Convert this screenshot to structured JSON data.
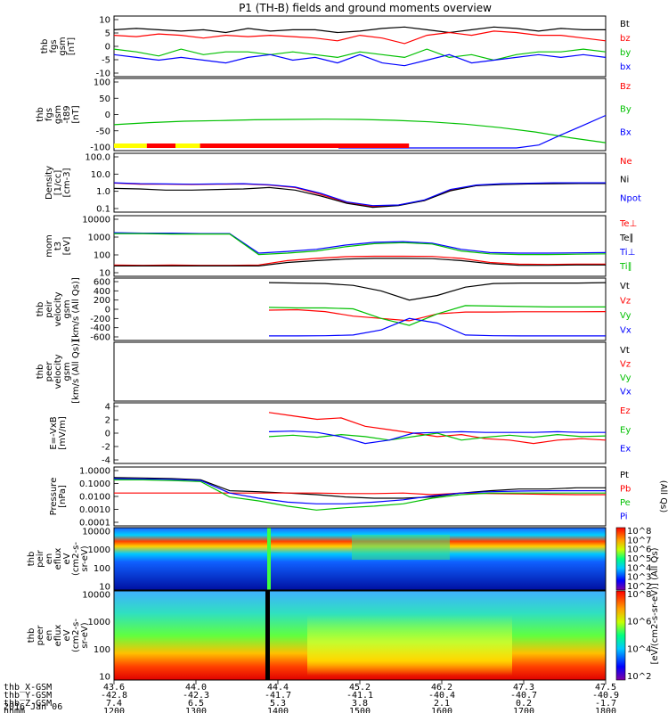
{
  "title": "P1 (TH-B) fields and ground moments overview",
  "chart_data": [
    {
      "type": "line",
      "panel": "fgs",
      "ylabel": [
        "thb",
        "fgs",
        "gsm",
        "[nT]"
      ],
      "yticks": [
        "10",
        "5",
        "0",
        "-5",
        "-10"
      ],
      "ylim": [
        -10,
        10
      ],
      "series": [
        {
          "name": "Bt",
          "color": "#000000",
          "values": [
            6,
            6.5,
            6,
            5.5,
            6,
            5,
            6.5,
            5.5,
            6,
            6,
            5,
            5.5,
            6.5,
            7,
            6,
            5,
            6,
            7,
            6.5,
            5.5,
            6.5,
            6,
            6
          ]
        },
        {
          "name": "bz",
          "color": "#ff0000",
          "values": [
            4,
            3.5,
            4.5,
            4,
            3,
            4,
            3.5,
            4,
            3.5,
            3,
            2,
            4,
            3,
            1,
            4,
            5,
            4,
            5.5,
            5,
            4,
            4,
            3,
            2
          ]
        },
        {
          "name": "by",
          "color": "#00c000",
          "values": [
            -1,
            -2,
            -3.5,
            -1,
            -3,
            -2,
            -2,
            -3,
            -2,
            -3,
            -4,
            -2,
            -3,
            -4,
            -1,
            -4,
            -3,
            -5,
            -3,
            -2,
            -2,
            -1,
            -2
          ]
        },
        {
          "name": "bx",
          "color": "#0000ff",
          "values": [
            -3,
            -4,
            -5,
            -4,
            -5,
            -6,
            -4,
            -3,
            -5,
            -4,
            -6,
            -3,
            -6,
            -7,
            -5,
            -3,
            -6,
            -5,
            -4,
            -3,
            -4,
            -3,
            -4
          ]
        }
      ]
    },
    {
      "type": "line",
      "panel": "fgs-model",
      "ylabel": [
        "thb",
        "fgs",
        "gsm",
        "-t89",
        "[nT]"
      ],
      "yticks": [
        "100",
        "50",
        "0",
        "-50",
        "-100"
      ],
      "ylim": [
        -130,
        100
      ],
      "series": [
        {
          "name": "Bz",
          "color": "#ff0000",
          "values": []
        },
        {
          "name": "By",
          "color": "#00c000",
          "values": [
            -50,
            -43,
            -38,
            -36,
            -33,
            -32,
            -31,
            -32,
            -35,
            -40,
            -48,
            -60,
            -75,
            -95,
            -112
          ]
        },
        {
          "name": "Bx",
          "color": "#0000ff",
          "values": [
            -130,
            -130,
            -130,
            -130,
            -130,
            -130,
            -130,
            -130,
            -130,
            -120,
            -85,
            -52,
            -18
          ]
        }
      ],
      "bar_segments": [
        {
          "from": "1200",
          "to": "1240",
          "color": "#ffff00"
        },
        {
          "from": "1240",
          "to": "1315",
          "color": "#ff0000"
        },
        {
          "from": "1315",
          "to": "1345",
          "color": "#ffff00"
        },
        {
          "from": "1345",
          "to": "1800",
          "color": "#ff0000"
        }
      ]
    },
    {
      "type": "line",
      "panel": "density",
      "ylabel": [
        "Density",
        "[1/cc]",
        "[cm-3]"
      ],
      "yticks": [
        "100.0",
        "10.0",
        "1.0",
        "0.1"
      ],
      "scale": "log",
      "ylim": [
        0.05,
        200
      ],
      "series": [
        {
          "name": "Ne",
          "color": "#ff0000",
          "values": [
            3,
            2.5,
            2.5,
            2.4,
            2.5,
            2.6,
            2.2,
            1.5,
            0.5,
            0.15,
            0.08,
            0.1,
            0.2,
            1,
            2,
            2.6,
            2.8,
            3,
            3,
            3
          ]
        },
        {
          "name": "Ni",
          "color": "#000000",
          "values": [
            1.3,
            1.2,
            1,
            1,
            1.1,
            1.2,
            1.5,
            1,
            0.4,
            0.13,
            0.07,
            0.09,
            0.2,
            0.9,
            2,
            2.4,
            2.6,
            2.7,
            2.8,
            2.8
          ]
        },
        {
          "name": "Npot",
          "color": "#0000ff",
          "values": [
            3.1,
            2.7,
            2.6,
            2.5,
            2.6,
            2.7,
            2.3,
            1.6,
            0.6,
            0.16,
            0.09,
            0.1,
            0.22,
            1.1,
            2.2,
            2.7,
            2.9,
            3.1,
            3.1,
            3.1
          ]
        }
      ]
    },
    {
      "type": "line",
      "panel": "mom-temperature",
      "ylabel": [
        "mom",
        "t3",
        "[eV]"
      ],
      "yticks": [
        "10000",
        "1000",
        "100",
        "10"
      ],
      "scale": "log",
      "ylim": [
        8,
        12000
      ],
      "series": [
        {
          "name": "Te⊥",
          "color": "#ff0000",
          "values": [
            25,
            24,
            25,
            24,
            24,
            25,
            45,
            60,
            75,
            80,
            80,
            78,
            60,
            35,
            28,
            27,
            28,
            28
          ]
        },
        {
          "name": "Te∥",
          "color": "#000000",
          "values": [
            22,
            22,
            22,
            22,
            22,
            22,
            35,
            45,
            55,
            60,
            60,
            58,
            45,
            30,
            24,
            24,
            25,
            25
          ]
        },
        {
          "name": "Ti⊥",
          "color": "#0000ff",
          "values": [
            1800,
            1700,
            1700,
            1600,
            1600,
            120,
            150,
            200,
            350,
            500,
            550,
            450,
            200,
            130,
            120,
            120,
            125,
            130
          ]
        },
        {
          "name": "Ti∥",
          "color": "#00c000",
          "values": [
            1600,
            1600,
            1500,
            1500,
            1500,
            100,
            120,
            160,
            280,
            420,
            480,
            400,
            160,
            110,
            100,
            100,
            105,
            110
          ]
        }
      ]
    },
    {
      "type": "line",
      "panel": "peir-velocity",
      "ylabel": [
        "thb",
        "peir",
        "velocity",
        "gsm",
        "[km/s (All Qs)]"
      ],
      "yticks": [
        "600",
        "400",
        "200",
        "0",
        "-200",
        "-400",
        "-600"
      ],
      "ylim": [
        -620,
        620
      ],
      "series": [
        {
          "name": "Vt",
          "color": "#000000",
          "values": [
            580,
            570,
            560,
            520,
            400,
            200,
            300,
            480,
            560,
            570,
            570,
            570,
            580
          ]
        },
        {
          "name": "Vz",
          "color": "#ff0000",
          "values": [
            -20,
            -10,
            -50,
            -150,
            -200,
            -250,
            -100,
            -60,
            -60,
            -55,
            -55,
            -55,
            -50
          ]
        },
        {
          "name": "Vy",
          "color": "#00c000",
          "values": [
            40,
            30,
            30,
            10,
            -200,
            -350,
            -100,
            80,
            70,
            60,
            50,
            50,
            50
          ]
        },
        {
          "name": "Vx",
          "color": "#0000ff",
          "values": [
            -580,
            -580,
            -575,
            -560,
            -450,
            -200,
            -300,
            -560,
            -575,
            -580,
            -580,
            -580,
            -580
          ]
        }
      ]
    },
    {
      "type": "line",
      "panel": "peer-velocity",
      "ylabel": [
        "thb",
        "peer",
        "velocity",
        "gsm",
        "[km/s (All Qs)]"
      ],
      "yticks": [],
      "series": [
        {
          "name": "Vt",
          "color": "#000000",
          "values": []
        },
        {
          "name": "Vz",
          "color": "#ff0000",
          "values": []
        },
        {
          "name": "Vy",
          "color": "#00c000",
          "values": []
        },
        {
          "name": "Vx",
          "color": "#0000ff",
          "values": []
        }
      ]
    },
    {
      "type": "line",
      "panel": "efield",
      "ylabel": [
        "E=-VxB",
        "[mV/m]"
      ],
      "yticks": [
        "4",
        "2",
        "0",
        "-2",
        "-4"
      ],
      "ylim": [
        -4,
        4
      ],
      "series": [
        {
          "name": "Ez",
          "color": "#ff0000",
          "values": [
            3,
            2.5,
            2,
            2.2,
            1,
            0.5,
            0,
            -0.5,
            -0.2,
            -0.8,
            -1,
            -1.5,
            -1,
            -0.8,
            -1
          ]
        },
        {
          "name": "Ey",
          "color": "#00c000",
          "values": [
            -0.5,
            -0.3,
            -0.6,
            -0.2,
            -0.5,
            -1,
            -0.5,
            0,
            -1,
            -0.6,
            -0.3,
            -0.6,
            -0.2,
            -0.5,
            -0.4
          ]
        },
        {
          "name": "Ex",
          "color": "#0000ff",
          "values": [
            0.2,
            0.3,
            0.1,
            -0.5,
            -1.5,
            -1,
            0,
            0.1,
            0.2,
            0.1,
            0.1,
            0.1,
            0.2,
            0.1,
            0.1
          ]
        }
      ]
    },
    {
      "type": "line",
      "panel": "pressure",
      "ylabel": [
        "Pressure",
        "[nPa]"
      ],
      "yticks": [
        "1.0000",
        "0.1000",
        "0.0100",
        "0.0010",
        "0.0001"
      ],
      "scale": "log",
      "ylim": [
        0.0001,
        1.2
      ],
      "right_label": "(All Qs)",
      "series": [
        {
          "name": "Pt",
          "color": "#000000",
          "values": [
            0.3,
            0.28,
            0.25,
            0.2,
            0.03,
            0.025,
            0.02,
            0.015,
            0.01,
            0.008,
            0.008,
            0.01,
            0.02,
            0.03,
            0.04,
            0.04,
            0.05,
            0.05
          ]
        },
        {
          "name": "Pb",
          "color": "#ff0000",
          "values": [
            0.02,
            0.02,
            0.02,
            0.02,
            0.02,
            0.02,
            0.02,
            0.02,
            0.018,
            0.018,
            0.02,
            0.015,
            0.02,
            0.018,
            0.017,
            0.016,
            0.015,
            0.015
          ]
        },
        {
          "name": "Pe",
          "color": "#00c000",
          "values": [
            0.2,
            0.2,
            0.18,
            0.15,
            0.01,
            0.005,
            0.002,
            0.001,
            0.0015,
            0.002,
            0.003,
            0.008,
            0.015,
            0.02,
            0.02,
            0.02,
            0.02,
            0.02
          ]
        },
        {
          "name": "Pi",
          "color": "#0000ff",
          "values": [
            0.25,
            0.24,
            0.22,
            0.18,
            0.02,
            0.008,
            0.004,
            0.003,
            0.003,
            0.004,
            0.006,
            0.012,
            0.02,
            0.025,
            0.028,
            0.03,
            0.03,
            0.03
          ]
        }
      ]
    },
    {
      "type": "heatmap",
      "panel": "peir-spectrogram",
      "ylabel": [
        "thb",
        "peir",
        "en",
        "eflux",
        "eV",
        "(cm2-s-",
        "sr-eV)"
      ],
      "yticks": [
        "10000",
        "1000",
        "100",
        "10"
      ],
      "colorbar_ticks": [
        "10^8",
        "10^7",
        "10^6",
        "10^5",
        "10^4",
        "10^3",
        "10^2"
      ],
      "colorbar_label": "[eV/(cm2-s-sr-eV)] (All Qs)"
    },
    {
      "type": "heatmap",
      "panel": "peer-spectrogram",
      "ylabel": [
        "thb",
        "peer",
        "en",
        "eflux",
        "eV",
        "(cm2-s-",
        "sr-eV)"
      ],
      "yticks": [
        "10000",
        "1000",
        "100",
        "10"
      ],
      "colorbar_ticks": [
        "10^8",
        "10^6",
        "10^4",
        "10^2"
      ],
      "colorbar_label": "[eV/(cm2-s-sr-eV)]"
    }
  ],
  "xaxis": {
    "row_labels": [
      "thb_X-GSM",
      "thb_Y-GSM",
      "thb_Z-GSM",
      "hhmm"
    ],
    "columns": [
      [
        "43.6",
        "-42.8",
        "7.4",
        "1200"
      ],
      [
        "44.0",
        "-42.3",
        "6.5",
        "1300"
      ],
      [
        "44.4",
        "-41.7",
        "5.3",
        "1400"
      ],
      [
        "45.2",
        "-41.1",
        "3.8",
        "1500"
      ],
      [
        "46.2",
        "-40.4",
        "2.1",
        "1600"
      ],
      [
        "47.3",
        "-40.7",
        "0.2",
        "1700"
      ],
      [
        "47.5",
        "-40.9",
        "-1.7",
        "1800"
      ]
    ],
    "date": "2016 Jan 06"
  }
}
